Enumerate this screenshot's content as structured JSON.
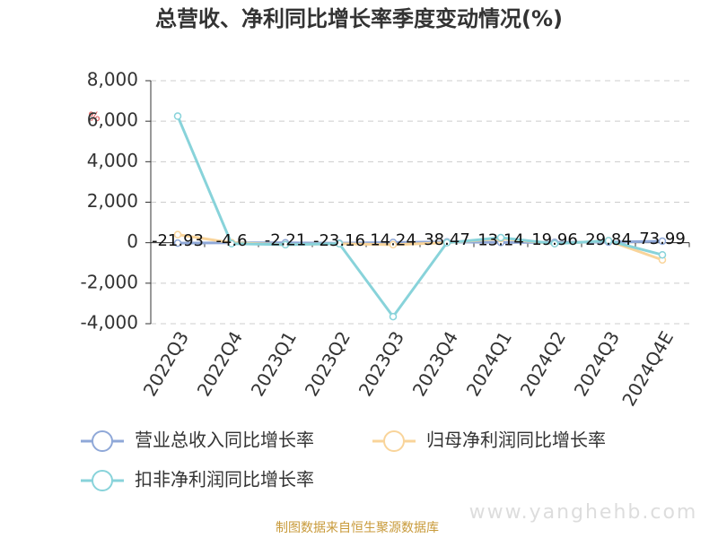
{
  "chart_data": {
    "type": "line",
    "title": "总营收、净利同比增长率季度变动情况(%)",
    "ylabel": "%",
    "categories": [
      "2022Q3",
      "2022Q4",
      "2023Q1",
      "2023Q2",
      "2023Q3",
      "2023Q4",
      "2024Q1",
      "2024Q2",
      "2024Q3",
      "2024Q4E"
    ],
    "series": [
      {
        "name": "营业总收入同比增长率",
        "color": "#8fa8d8",
        "values": [
          -21.93,
          -4.6,
          -2.21,
          -23.16,
          14.24,
          38.47,
          13.14,
          19.96,
          29.84,
          73.99
        ],
        "show_labels": true
      },
      {
        "name": "归母净利润同比增长率",
        "color": "#f9d49a",
        "values": [
          400,
          0,
          -100,
          -50,
          -100,
          0,
          200,
          -50,
          100,
          -850
        ]
      },
      {
        "name": "扣非净利润同比增长率",
        "color": "#88d3da",
        "values": [
          6250,
          -50,
          -100,
          -50,
          -3650,
          0,
          250,
          -50,
          100,
          -600
        ]
      }
    ],
    "ylim": [
      -4000,
      8000
    ],
    "yticks": [
      {
        "value": -4000,
        "label": "-4,000"
      },
      {
        "value": -2000,
        "label": "-2,000"
      },
      0,
      {
        "value": 2000,
        "label": "2,000"
      },
      {
        "value": 4000,
        "label": "4,000"
      },
      {
        "value": 6000,
        "label": "6,000"
      },
      {
        "value": 8000,
        "label": "8,000"
      }
    ],
    "grid": true,
    "source": "制图数据来自恒生聚源数据库",
    "watermark": "www.yanghehb.com"
  }
}
